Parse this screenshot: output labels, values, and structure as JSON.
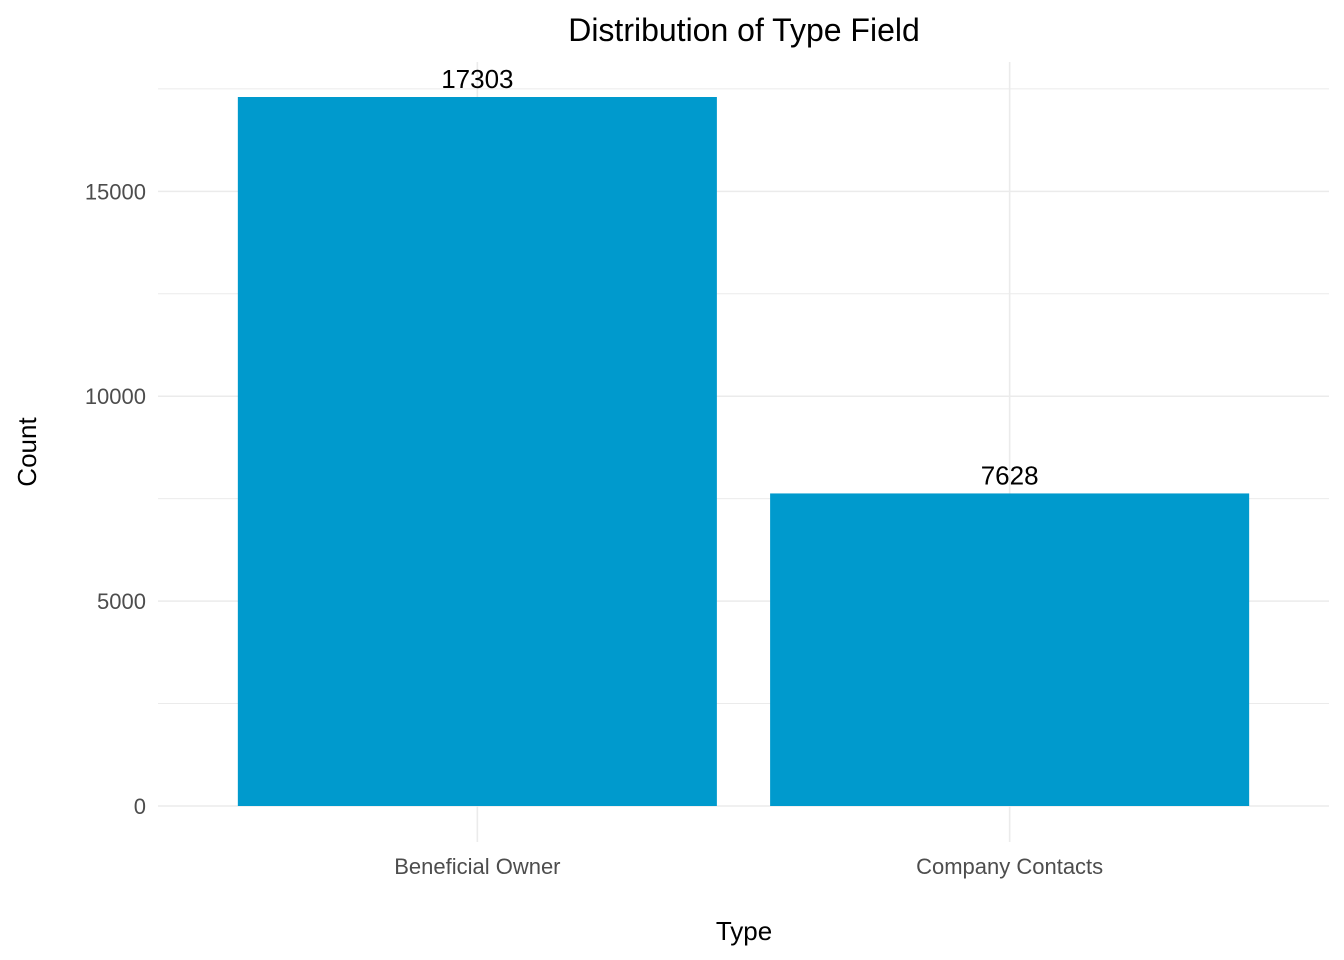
{
  "chart_data": {
    "type": "bar",
    "title": "Distribution of Type Field",
    "xlabel": "Type",
    "ylabel": "Count",
    "categories": [
      "Beneficial Owner",
      "Company Contacts"
    ],
    "values": [
      17303,
      7628
    ],
    "data_labels": [
      "17303",
      "7628"
    ],
    "ylim": [
      0,
      17303
    ],
    "y_ticks": [
      0,
      5000,
      10000,
      15000
    ],
    "y_tick_labels": [
      "0",
      "5000",
      "10000",
      "15000"
    ],
    "grid": true,
    "legend": "none",
    "bar_color": "#009ACD",
    "grid_color": "#EBEBEB"
  }
}
